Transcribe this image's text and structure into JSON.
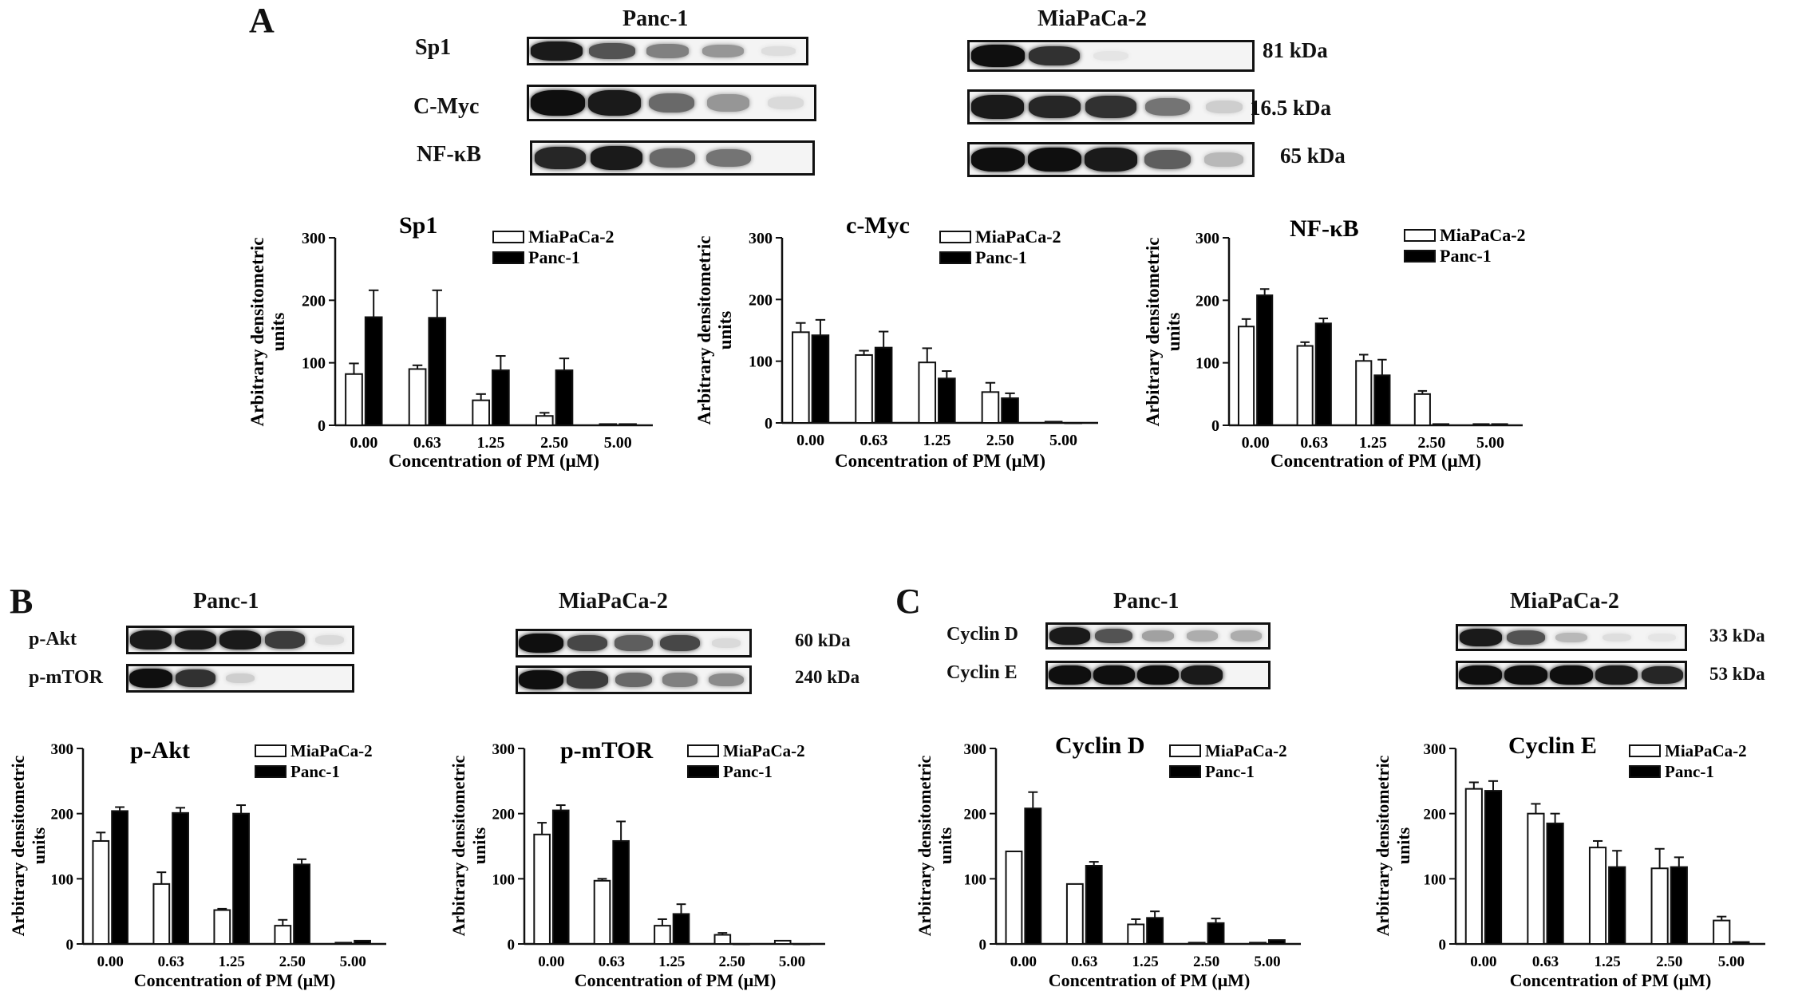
{
  "panels": {
    "A": "A",
    "B": "B",
    "C": "C"
  },
  "blots": {
    "A": {
      "panc_title": "Panc-1",
      "mia_title": "MiaPaCa-2",
      "rows": [
        {
          "label": "Sp1",
          "kda": "81 kDa",
          "panc": [
            0.95,
            0.7,
            0.5,
            0.4,
            0.08
          ],
          "mia": [
            1.0,
            0.85,
            0.05,
            0.0,
            0.0
          ]
        },
        {
          "label": "C-Myc",
          "kda": "16.5 kDa",
          "panc": [
            1.0,
            0.95,
            0.6,
            0.4,
            0.1
          ],
          "mia": [
            0.95,
            0.9,
            0.85,
            0.55,
            0.15
          ]
        },
        {
          "label": "NF-κB",
          "kda": "65 kDa",
          "panc": [
            0.9,
            0.95,
            0.6,
            0.55,
            0.0
          ],
          "mia": [
            1.0,
            1.0,
            0.95,
            0.65,
            0.25
          ]
        }
      ]
    },
    "B": {
      "panc_title": "Panc-1",
      "mia_title": "MiaPaCa-2",
      "rows": [
        {
          "label": "p-Akt",
          "kda": "60 kDa",
          "panc": [
            0.95,
            0.95,
            0.95,
            0.8,
            0.1
          ],
          "mia": [
            1.0,
            0.75,
            0.65,
            0.75,
            0.1
          ]
        },
        {
          "label": "p-mTOR",
          "kda": "240 kDa",
          "panc": [
            1.0,
            0.85,
            0.15,
            0.0,
            0.0
          ],
          "mia": [
            1.0,
            0.8,
            0.6,
            0.5,
            0.45
          ]
        }
      ]
    },
    "C": {
      "panc_title": "Panc-1",
      "mia_title": "MiaPaCa-2",
      "rows": [
        {
          "label": "Cyclin D",
          "kda": "33 kDa",
          "panc": [
            0.95,
            0.7,
            0.35,
            0.3,
            0.3
          ],
          "mia": [
            0.95,
            0.7,
            0.25,
            0.08,
            0.05
          ]
        },
        {
          "label": "Cyclin E",
          "kda": "53 kDa",
          "panc": [
            1.0,
            1.0,
            1.0,
            0.95,
            0.0
          ],
          "mia": [
            1.0,
            1.0,
            1.0,
            0.95,
            0.9
          ]
        }
      ]
    }
  },
  "chart_data": [
    {
      "type": "bar",
      "title": "Sp1",
      "categories": [
        "0.00",
        "0.63",
        "1.25",
        "2.50",
        "5.00"
      ],
      "xlabel": "Concentration of PM (μM)",
      "ylabel": "Arbitrary densitometric units",
      "ylim": [
        0,
        300
      ],
      "yticks": [
        "0",
        "100",
        "200",
        "300"
      ],
      "legend": "top-right",
      "series": [
        {
          "name": "MiaPaCa-2",
          "color": "#ffffff",
          "values": [
            82,
            90,
            40,
            15,
            2
          ],
          "errors": [
            17,
            6,
            10,
            5,
            0
          ]
        },
        {
          "name": "Panc-1",
          "color": "#000000",
          "values": [
            173,
            172,
            88,
            88,
            2
          ],
          "errors": [
            43,
            44,
            23,
            19,
            0
          ]
        }
      ]
    },
    {
      "type": "bar",
      "title": "c-Myc",
      "categories": [
        "0.00",
        "0.63",
        "1.25",
        "2.50",
        "5.00"
      ],
      "xlabel": "Concentration of PM (μM)",
      "ylabel": "Arbitrary densitometric units",
      "ylim": [
        0,
        300
      ],
      "yticks": [
        "0",
        "100",
        "200",
        "300"
      ],
      "legend": "top-right",
      "series": [
        {
          "name": "MiaPaCa-2",
          "color": "#ffffff",
          "values": [
            147,
            110,
            98,
            50,
            2
          ],
          "errors": [
            15,
            7,
            23,
            15,
            0
          ]
        },
        {
          "name": "Panc-1",
          "color": "#000000",
          "values": [
            142,
            122,
            72,
            40,
            0
          ],
          "errors": [
            25,
            26,
            12,
            8,
            0
          ]
        }
      ]
    },
    {
      "type": "bar",
      "title": "NF-κB",
      "categories": [
        "0.00",
        "0.63",
        "1.25",
        "2.50",
        "5.00"
      ],
      "xlabel": "Concentration of PM (μM)",
      "ylabel": "Arbitrary densitometric units",
      "ylim": [
        0,
        300
      ],
      "yticks": [
        "0",
        "100",
        "200",
        "300"
      ],
      "legend": "top-right",
      "series": [
        {
          "name": "MiaPaCa-2",
          "color": "#ffffff",
          "values": [
            158,
            127,
            103,
            50,
            2
          ],
          "errors": [
            12,
            6,
            10,
            5,
            0
          ]
        },
        {
          "name": "Panc-1",
          "color": "#000000",
          "values": [
            208,
            163,
            80,
            2,
            2
          ],
          "errors": [
            10,
            8,
            25,
            0,
            0
          ]
        }
      ]
    },
    {
      "type": "bar",
      "title": "p-Akt",
      "categories": [
        "0.00",
        "0.63",
        "1.25",
        "2.50",
        "5.00"
      ],
      "xlabel": "Concentration of PM (μM)",
      "ylabel": "Arbitrary densitometric units",
      "ylim": [
        0,
        300
      ],
      "yticks": [
        "0",
        "100",
        "200",
        "300"
      ],
      "legend": "top-right",
      "series": [
        {
          "name": "MiaPaCa-2",
          "color": "#ffffff",
          "values": [
            158,
            92,
            52,
            28,
            2
          ],
          "errors": [
            13,
            18,
            2,
            9,
            0
          ]
        },
        {
          "name": "Panc-1",
          "color": "#000000",
          "values": [
            204,
            201,
            200,
            122,
            5
          ],
          "errors": [
            6,
            8,
            13,
            8,
            0
          ]
        }
      ]
    },
    {
      "type": "bar",
      "title": "p-mTOR",
      "categories": [
        "0.00",
        "0.63",
        "1.25",
        "2.50",
        "5.00"
      ],
      "xlabel": "Concentration of PM (μM)",
      "ylabel": "Arbitrary densitometric units",
      "ylim": [
        0,
        300
      ],
      "yticks": [
        "0",
        "100",
        "200",
        "300"
      ],
      "legend": "top-right",
      "series": [
        {
          "name": "MiaPaCa-2",
          "color": "#ffffff",
          "values": [
            168,
            97,
            28,
            14,
            5
          ],
          "errors": [
            18,
            3,
            10,
            3,
            0
          ]
        },
        {
          "name": "Panc-1",
          "color": "#000000",
          "values": [
            205,
            158,
            46,
            0,
            0
          ],
          "errors": [
            8,
            30,
            15,
            0,
            0
          ]
        }
      ]
    },
    {
      "type": "bar",
      "title": "Cyclin D",
      "categories": [
        "0.00",
        "0.63",
        "1.25",
        "2.50",
        "5.00"
      ],
      "xlabel": "Concentration of PM (μM)",
      "ylabel": "Arbitrary densitometric units",
      "ylim": [
        0,
        300
      ],
      "yticks": [
        "0",
        "100",
        "200",
        "300"
      ],
      "legend": "top-right",
      "series": [
        {
          "name": "MiaPaCa-2",
          "color": "#ffffff",
          "values": [
            142,
            92,
            30,
            2,
            2
          ],
          "errors": [
            0,
            0,
            8,
            0,
            0
          ]
        },
        {
          "name": "Panc-1",
          "color": "#000000",
          "values": [
            208,
            120,
            40,
            32,
            6
          ],
          "errors": [
            25,
            6,
            10,
            7,
            0
          ]
        }
      ]
    },
    {
      "type": "bar",
      "title": "Cyclin E",
      "categories": [
        "0.00",
        "0.63",
        "1.25",
        "2.50",
        "5.00"
      ],
      "xlabel": "Concentration of PM (μM)",
      "ylabel": "Arbitrary densitometric units",
      "ylim": [
        0,
        300
      ],
      "yticks": [
        "0",
        "100",
        "200",
        "300"
      ],
      "legend": "top-right",
      "series": [
        {
          "name": "MiaPaCa-2",
          "color": "#ffffff",
          "values": [
            238,
            200,
            148,
            116,
            36
          ],
          "errors": [
            10,
            15,
            10,
            30,
            6
          ]
        },
        {
          "name": "Panc-1",
          "color": "#000000",
          "values": [
            235,
            185,
            118,
            118,
            3
          ],
          "errors": [
            15,
            15,
            25,
            15,
            0
          ]
        }
      ]
    }
  ]
}
